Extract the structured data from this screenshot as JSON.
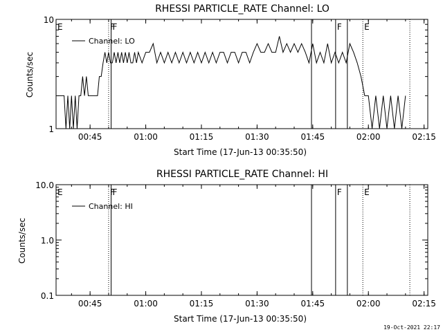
{
  "footer_stamp": "19-Oct-2021 22:17",
  "chart_data": [
    {
      "type": "line",
      "title": "RHESSI PARTICLE_RATE Channel: LO",
      "xlabel": "Start Time (17-Jun-13 00:35:50)",
      "ylabel": "Counts/sec",
      "yscale": "log",
      "ylim": [
        1,
        10
      ],
      "y_ticks": [
        1,
        10
      ],
      "y_tick_labels": [
        "1",
        "10"
      ],
      "xlim": [
        "00:35:50",
        "02:16:00"
      ],
      "x_ticks": [
        "00:45",
        "01:00",
        "01:15",
        "01:30",
        "01:45",
        "02:00",
        "02:15"
      ],
      "grid": false,
      "legend": {
        "position": "top-left",
        "entries": [
          "Channel: LO"
        ]
      },
      "markers": [
        {
          "label": "E",
          "time": "00:35:50",
          "style": "dotted"
        },
        {
          "label": "F",
          "time": "00:50:00",
          "style": "dotted"
        },
        {
          "label": "F",
          "time": "00:50:40",
          "style": "solid"
        },
        {
          "label": "",
          "time": "01:44:40",
          "style": "solid"
        },
        {
          "label": "F",
          "time": "01:51:10",
          "style": "solid"
        },
        {
          "label": "",
          "time": "01:54:20",
          "style": "solid"
        },
        {
          "label": "E",
          "time": "01:58:30",
          "style": "dotted"
        },
        {
          "label": "",
          "time": "02:11:10",
          "style": "dotted"
        }
      ],
      "series": [
        {
          "name": "Channel: LO",
          "x": [
            "00:36:30",
            "00:38:00",
            "00:38:30",
            "00:39:00",
            "00:39:30",
            "00:40:00",
            "00:40:30",
            "00:41:00",
            "00:41:30",
            "00:42:00",
            "00:42:30",
            "00:43:00",
            "00:43:30",
            "00:44:00",
            "00:44:30",
            "00:45:00",
            "00:45:30",
            "00:46:00",
            "00:46:30",
            "00:47:00",
            "00:47:30",
            "00:48:00",
            "00:48:30",
            "00:49:00",
            "00:49:30",
            "00:50:00",
            "00:50:30",
            "00:51:00",
            "00:51:30",
            "00:52:00",
            "00:52:30",
            "00:53:00",
            "00:53:30",
            "00:54:00",
            "00:54:30",
            "00:55:00",
            "00:55:30",
            "00:56:00",
            "00:56:30",
            "00:57:00",
            "00:57:30",
            "00:58:00",
            "00:59:00",
            "01:00:00",
            "01:01:00",
            "01:02:00",
            "01:03:00",
            "01:04:00",
            "01:05:00",
            "01:06:00",
            "01:07:00",
            "01:08:00",
            "01:09:00",
            "01:10:00",
            "01:11:00",
            "01:12:00",
            "01:13:00",
            "01:14:00",
            "01:15:00",
            "01:16:00",
            "01:17:00",
            "01:18:00",
            "01:19:00",
            "01:20:00",
            "01:21:00",
            "01:22:00",
            "01:23:00",
            "01:24:00",
            "01:25:00",
            "01:26:00",
            "01:27:00",
            "01:28:00",
            "01:29:00",
            "01:30:00",
            "01:31:00",
            "01:32:00",
            "01:33:00",
            "01:34:00",
            "01:35:00",
            "01:36:00",
            "01:37:00",
            "01:38:00",
            "01:39:00",
            "01:40:00",
            "01:41:00",
            "01:42:00",
            "01:43:00",
            "01:44:00",
            "01:45:00",
            "01:46:00",
            "01:47:00",
            "01:48:00",
            "01:49:00",
            "01:50:00",
            "01:51:00",
            "01:52:00",
            "01:53:00",
            "01:54:00",
            "01:55:00",
            "01:56:00",
            "01:57:00",
            "01:58:00",
            "01:59:00",
            "02:00:00",
            "02:01:00",
            "02:02:00",
            "02:03:00",
            "02:04:00",
            "02:05:00",
            "02:06:00",
            "02:07:00",
            "02:08:00",
            "02:09:00",
            "02:10:00"
          ],
          "values": [
            2,
            2,
            1,
            2,
            1,
            2,
            1,
            2,
            1,
            2,
            2,
            3,
            2,
            3,
            2,
            2,
            2,
            2,
            2,
            2,
            3,
            3,
            4,
            5,
            4,
            5,
            4,
            4,
            5,
            4,
            5,
            4,
            5,
            4,
            5,
            4,
            5,
            4,
            4,
            5,
            4,
            5,
            4,
            5,
            5,
            6,
            4,
            5,
            4,
            5,
            4,
            5,
            4,
            5,
            4,
            5,
            4,
            5,
            4,
            5,
            4,
            5,
            4,
            5,
            5,
            4,
            5,
            5,
            4,
            5,
            5,
            4,
            5,
            6,
            5,
            5,
            6,
            5,
            5,
            7,
            5,
            6,
            5,
            6,
            5,
            6,
            5,
            4,
            6,
            4,
            5,
            4,
            6,
            4,
            5,
            4,
            5,
            4,
            6,
            5,
            4,
            3,
            2,
            2,
            1,
            2,
            1,
            2,
            1,
            2,
            1,
            2,
            1,
            2
          ]
        }
      ]
    },
    {
      "type": "line",
      "title": "RHESSI PARTICLE_RATE Channel: HI",
      "xlabel": "Start Time (17-Jun-13 00:35:50)",
      "ylabel": "Counts/sec",
      "yscale": "log",
      "ylim": [
        0.1,
        10
      ],
      "y_ticks": [
        0.1,
        1,
        10
      ],
      "y_tick_labels": [
        "0.1",
        "1.0",
        "10.0"
      ],
      "xlim": [
        "00:35:50",
        "02:16:00"
      ],
      "x_ticks": [
        "00:45",
        "01:00",
        "01:15",
        "01:30",
        "01:45",
        "02:00",
        "02:15"
      ],
      "grid": false,
      "legend": {
        "position": "top-left",
        "entries": [
          "Channel: HI"
        ]
      },
      "markers": [
        {
          "label": "E",
          "time": "00:35:50",
          "style": "dotted"
        },
        {
          "label": "F",
          "time": "00:50:00",
          "style": "dotted"
        },
        {
          "label": "F",
          "time": "00:50:40",
          "style": "solid"
        },
        {
          "label": "",
          "time": "01:44:40",
          "style": "solid"
        },
        {
          "label": "F",
          "time": "01:51:10",
          "style": "solid"
        },
        {
          "label": "",
          "time": "01:54:20",
          "style": "solid"
        },
        {
          "label": "E",
          "time": "01:58:30",
          "style": "dotted"
        },
        {
          "label": "",
          "time": "02:11:10",
          "style": "dotted"
        }
      ],
      "series": [
        {
          "name": "Channel: HI",
          "x": [],
          "values": []
        }
      ]
    }
  ]
}
